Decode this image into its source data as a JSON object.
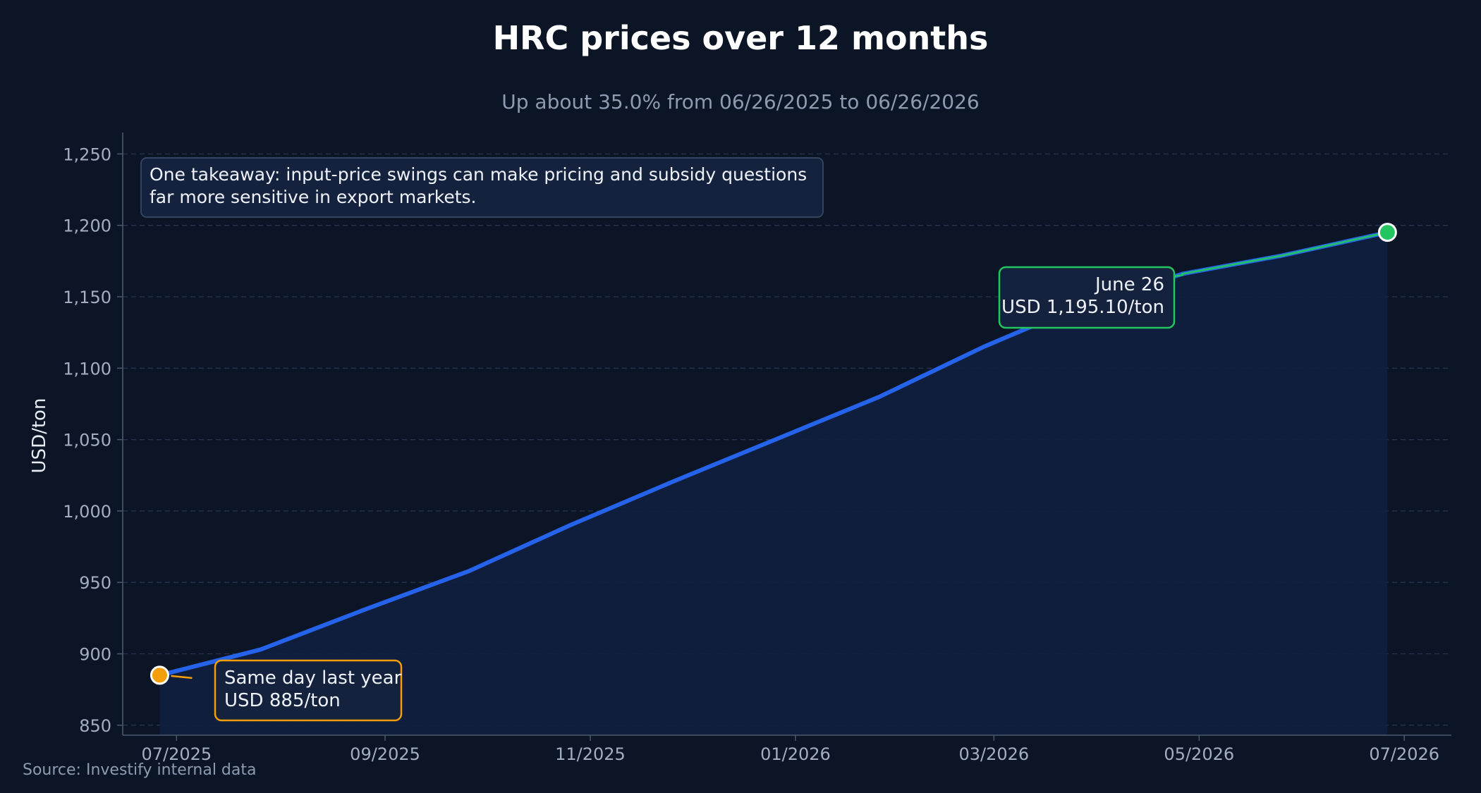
{
  "chart_data": {
    "type": "line",
    "title": "HRC prices over 12 months",
    "subtitle": "Up about 35.0% from 06/26/2025 to 06/26/2026",
    "xlabel": "",
    "ylabel": "USD/ton",
    "x_range": [
      "2025-06-15",
      "2026-07-15"
    ],
    "ylim": [
      843,
      1265
    ],
    "y_ticks": [
      850,
      900,
      950,
      1000,
      1050,
      1100,
      1150,
      1200,
      1250
    ],
    "y_tick_labels": [
      "850",
      "900",
      "950",
      "1,000",
      "1,050",
      "1,100",
      "1,150",
      "1,200",
      "1,250"
    ],
    "x_ticks": [
      "2025-07-01",
      "2025-09-01",
      "2025-11-01",
      "2026-01-01",
      "2026-03-01",
      "2026-05-01",
      "2026-07-01"
    ],
    "x_tick_labels": [
      "07/2025",
      "09/2025",
      "11/2025",
      "01/2026",
      "03/2026",
      "05/2026",
      "07/2026"
    ],
    "grid": true,
    "series": [
      {
        "name": "",
        "color": "#2563eb",
        "points": [
          {
            "x": "2025-06-26",
            "y": 885
          },
          {
            "x": "2025-07-26",
            "y": 903
          },
          {
            "x": "2025-08-26",
            "y": 931
          },
          {
            "x": "2025-09-26",
            "y": 958
          },
          {
            "x": "2025-10-26",
            "y": 990
          },
          {
            "x": "2025-11-26",
            "y": 1021
          },
          {
            "x": "2025-12-26",
            "y": 1050
          },
          {
            "x": "2026-01-26",
            "y": 1080
          },
          {
            "x": "2026-02-26",
            "y": 1115
          },
          {
            "x": "2026-03-26",
            "y": 1143
          },
          {
            "x": "2026-04-26",
            "y": 1166
          },
          {
            "x": "2026-05-26",
            "y": 1179
          },
          {
            "x": "2026-06-26",
            "y": 1195.1
          }
        ]
      }
    ],
    "highlight_segment": {
      "from": "2026-04-26",
      "to": "2026-06-26",
      "color": "#22c55e"
    },
    "start_point": {
      "x": "2025-06-26",
      "y": 885,
      "color": "#f59e0b"
    },
    "end_point": {
      "x": "2026-06-26",
      "y": 1195.1,
      "color": "#22c55e"
    },
    "annotations": {
      "start_label": [
        "Same day last year",
        "USD 885/ton"
      ],
      "end_label": [
        "June 26",
        "USD 1,195.10/ton"
      ],
      "takeaway": [
        "One takeaway: input-price swings can make pricing and subsidy questions",
        "far more sensitive in export markets."
      ]
    },
    "source": "Source: Investify internal data"
  }
}
